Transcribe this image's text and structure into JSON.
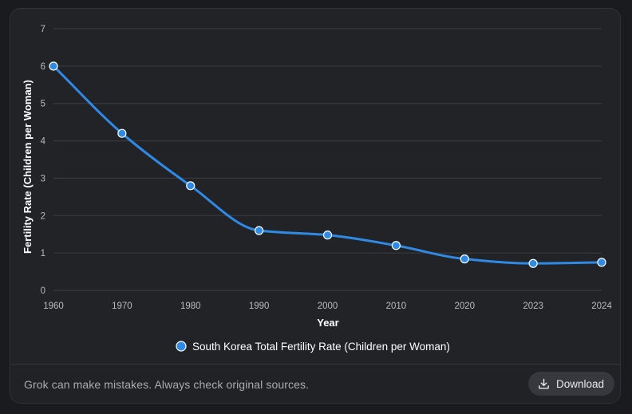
{
  "chart_data": {
    "type": "line",
    "categories": [
      "1960",
      "1970",
      "1980",
      "1990",
      "2000",
      "2010",
      "2020",
      "2023",
      "2024"
    ],
    "series": [
      {
        "name": "South Korea Total Fertility Rate (Children per Woman)",
        "values": [
          6.0,
          4.2,
          2.8,
          1.6,
          1.48,
          1.2,
          0.84,
          0.72,
          0.75
        ],
        "color": "#2f8ae5"
      }
    ],
    "yticks": [
      "0",
      "1",
      "2",
      "3",
      "4",
      "5",
      "6",
      "7"
    ],
    "ylim": [
      0,
      7
    ],
    "xlabel": "Year",
    "ylabel": "Fertility Rate (Children per Woman)",
    "grid": true,
    "legend_position": "bottom"
  },
  "footer": {
    "disclaimer": "Grok can make mistakes. Always check original sources.",
    "download_label": "Download",
    "download_icon": "download-icon"
  }
}
